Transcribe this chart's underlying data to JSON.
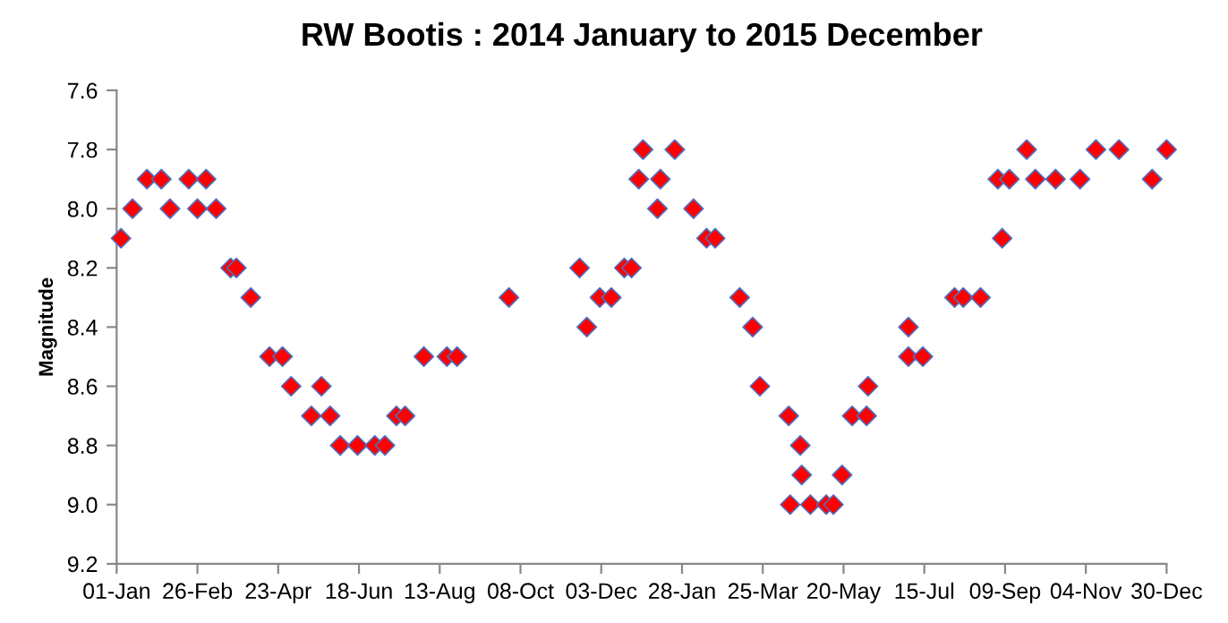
{
  "chart_data": {
    "type": "scatter",
    "title": "RW Bootis : 2014 January to 2015 December",
    "ylabel": "Magnitude",
    "marker": "diamond",
    "grid": false,
    "xlim": [
      "2014-01-01",
      "2015-12-30"
    ],
    "xticks": [
      {
        "value": "2014-01-01",
        "label": "01-Jan"
      },
      {
        "value": "2014-02-26",
        "label": "26-Feb"
      },
      {
        "value": "2014-04-23",
        "label": "23-Apr"
      },
      {
        "value": "2014-06-18",
        "label": "18-Jun"
      },
      {
        "value": "2014-08-13",
        "label": "13-Aug"
      },
      {
        "value": "2014-10-08",
        "label": "08-Oct"
      },
      {
        "value": "2014-12-03",
        "label": "03-Dec"
      },
      {
        "value": "2015-01-28",
        "label": "28-Jan"
      },
      {
        "value": "2015-03-25",
        "label": "25-Mar"
      },
      {
        "value": "2015-05-20",
        "label": "20-May"
      },
      {
        "value": "2015-07-15",
        "label": "15-Jul"
      },
      {
        "value": "2015-09-09",
        "label": "09-Sep"
      },
      {
        "value": "2015-11-04",
        "label": "04-Nov"
      },
      {
        "value": "2015-12-30",
        "label": "30-Dec"
      }
    ],
    "ylim": [
      9.2,
      7.6
    ],
    "yticks": [
      7.6,
      7.8,
      {
        "value": 8.0,
        "label": "8.0"
      },
      8.2,
      8.4,
      8.6,
      8.8,
      {
        "value": 9.0,
        "label": "9.0"
      },
      9.2
    ],
    "x": [
      "2014-01-04",
      "2014-01-12",
      "2014-01-22",
      "2014-02-01",
      "2014-02-07",
      "2014-02-20",
      "2014-02-26",
      "2014-03-04",
      "2014-03-11",
      "2014-03-21",
      "2014-03-25",
      "2014-04-04",
      "2014-04-17",
      "2014-04-26",
      "2014-05-02",
      "2014-05-16",
      "2014-05-23",
      "2014-05-29",
      "2014-06-05",
      "2014-06-17",
      "2014-06-29",
      "2014-07-06",
      "2014-07-14",
      "2014-07-20",
      "2014-08-02",
      "2014-08-18",
      "2014-08-25",
      "2014-09-30",
      "2014-11-18",
      "2014-11-23",
      "2014-12-02",
      "2014-12-10",
      "2014-12-19",
      "2014-12-24",
      "2014-12-29",
      "2015-01-01",
      "2015-01-11",
      "2015-01-13",
      "2015-01-23",
      "2015-02-05",
      "2015-02-14",
      "2015-02-20",
      "2015-03-09",
      "2015-03-18",
      "2015-03-23",
      "2015-04-12",
      "2015-04-13",
      "2015-04-20",
      "2015-04-21",
      "2015-04-27",
      "2015-05-08",
      "2015-05-13",
      "2015-05-19",
      "2015-05-26",
      "2015-06-05",
      "2015-06-06",
      "2015-07-04",
      "2015-07-04",
      "2015-07-14",
      "2015-08-05",
      "2015-08-11",
      "2015-08-23",
      "2015-09-04",
      "2015-09-07",
      "2015-09-12",
      "2015-09-24",
      "2015-09-30",
      "2015-10-14",
      "2015-10-31",
      "2015-11-11",
      "2015-11-27",
      "2015-12-20",
      "2015-12-30"
    ],
    "series": [
      {
        "color": "#ff0000",
        "values": [
          8.1,
          8.0,
          7.9,
          7.9,
          8.0,
          7.9,
          8.0,
          7.9,
          8.0,
          8.2,
          8.2,
          8.3,
          8.5,
          8.5,
          8.6,
          8.7,
          8.6,
          8.7,
          8.8,
          8.8,
          8.8,
          8.8,
          8.7,
          8.7,
          8.5,
          8.5,
          8.5,
          8.3,
          8.2,
          8.4,
          8.3,
          8.3,
          8.2,
          8.2,
          7.9,
          7.8,
          8.0,
          7.9,
          7.8,
          8.0,
          8.1,
          8.1,
          8.3,
          8.4,
          8.6,
          8.7,
          9.0,
          8.8,
          8.9,
          9.0,
          9.0,
          9.0,
          8.9,
          8.7,
          8.7,
          8.6,
          8.4,
          8.5,
          8.5,
          8.3,
          8.3,
          8.3,
          7.9,
          8.1,
          7.9,
          7.8,
          7.9,
          7.9,
          7.9,
          7.8,
          7.8,
          7.9,
          7.8
        ]
      }
    ]
  }
}
